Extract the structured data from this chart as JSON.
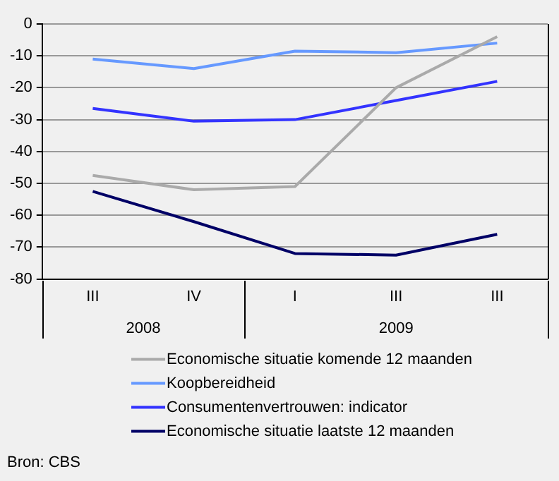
{
  "chart_data": {
    "type": "line",
    "categories": [
      "III",
      "IV",
      "I",
      "III",
      "III"
    ],
    "series": [
      {
        "name": "Economische situatie komende 12 maanden",
        "color": "#aaaaaa",
        "values": [
          -47.5,
          -52,
          -51,
          -20,
          -4
        ]
      },
      {
        "name": "Koopbereidheid",
        "color": "#6699ff",
        "values": [
          -11,
          -14,
          -8.5,
          -9,
          -6
        ]
      },
      {
        "name": "Consumentenvertrouwen: indicator",
        "color": "#3333ff",
        "values": [
          -26.5,
          -30.5,
          -30,
          -24,
          -18
        ]
      },
      {
        "name": "Economische situatie laatste 12 maanden",
        "color": "#000066",
        "values": [
          -52.5,
          -62,
          -72,
          -72.5,
          -66
        ]
      }
    ],
    "ylim": [
      -80,
      0
    ],
    "yticks": [
      0,
      -10,
      -20,
      -30,
      -40,
      -50,
      -60,
      -70,
      -80
    ],
    "grid": "y",
    "legend": "bottom",
    "marker": "none",
    "line_style": "solid",
    "annotations": [
      "2008",
      "2009",
      "Bron: CBS"
    ]
  }
}
